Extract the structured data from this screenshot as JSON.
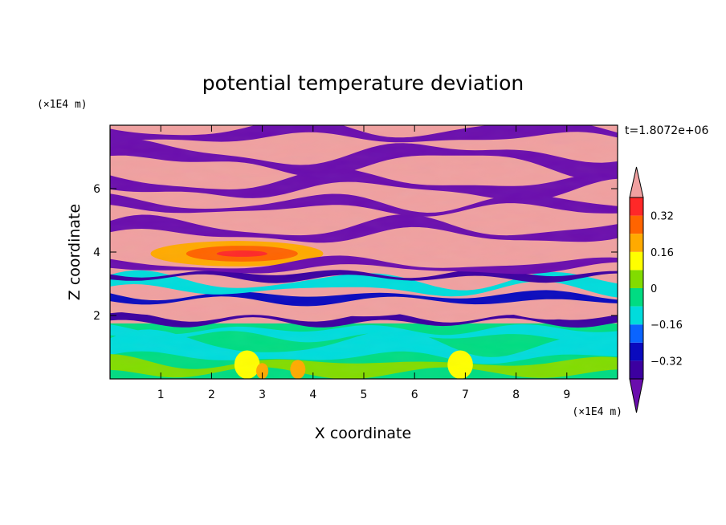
{
  "chart_data": {
    "type": "heatmap",
    "title": "potential temperature deviation",
    "xlabel": "X coordinate",
    "ylabel": "Z coordinate",
    "x_unit": "(×1E4 m)",
    "y_unit": "(×1E4 m)",
    "time_label": "t=1.8072e+06",
    "xlim": [
      0,
      10
    ],
    "ylim": [
      0,
      8
    ],
    "x_ticks": [
      1,
      2,
      3,
      4,
      5,
      6,
      7,
      8,
      9
    ],
    "y_ticks": [
      2,
      4,
      6
    ],
    "colorbar": {
      "levels": [
        -0.4,
        -0.32,
        -0.24,
        -0.16,
        -0.08,
        0,
        0.08,
        0.16,
        0.24,
        0.32,
        0.4
      ],
      "labeled_levels": [
        0.32,
        0.16,
        0,
        -0.16,
        -0.32
      ],
      "labels": [
        "0.32",
        "0.16",
        "0",
        "−0.16",
        "−0.32"
      ],
      "colors": [
        "#6a0dad",
        "#3c00a0",
        "#0a0abe",
        "#0a64ff",
        "#00dcdc",
        "#00dc82",
        "#82dc00",
        "#ffff00",
        "#ffaa00",
        "#ff6400",
        "#ff2828",
        "#f0a0a0"
      ]
    },
    "layers": [
      {
        "z_range": [
          0,
          1.7
        ],
        "dominant": "near-neutral (cyan/green) with warm plumes",
        "colors": [
          "#00dcdc",
          "#00dc82",
          "#82dc00",
          "#ffff00",
          "#ffaa00"
        ]
      },
      {
        "z_range": [
          1.7,
          3.3
        ],
        "dominant": "mixed negative and positive bands",
        "colors": [
          "#3c00a0",
          "#0a64ff",
          "#00dcdc",
          "#f0a0a0"
        ]
      },
      {
        "z_range": [
          3.3,
          4.5
        ],
        "dominant": "warm anomaly near x=2.5",
        "colors": [
          "#ff6400",
          "#ffaa00",
          "#f0a0a0"
        ]
      },
      {
        "z_range": [
          4.5,
          8
        ],
        "dominant": "alternating strong positive/negative layers",
        "colors": [
          "#f0a0a0",
          "#6a0dad"
        ]
      }
    ]
  }
}
